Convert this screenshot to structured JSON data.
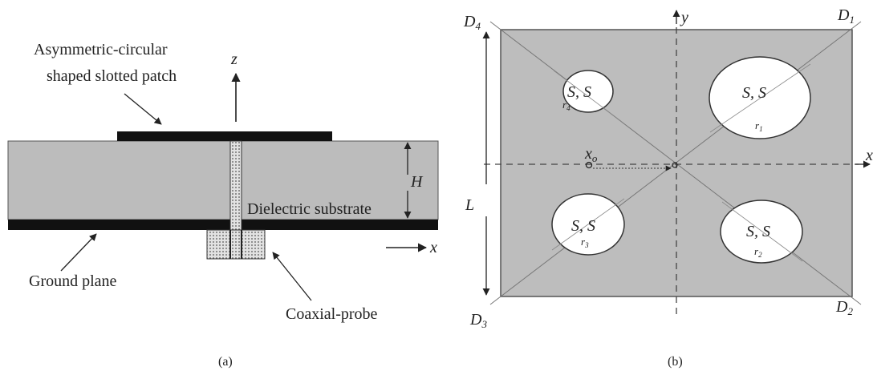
{
  "colors": {
    "substrate": "#bcbcbc",
    "patch": "#111111",
    "ground": "#111111",
    "plate": "#bdbdbd",
    "slot": "#ffffff",
    "line": "#444444",
    "probe_fill": "#d8d8d8"
  },
  "panel_a": {
    "patch_label_line1": "Asymmetric-circular",
    "patch_label_line2": "shaped slotted patch",
    "z_axis": "z",
    "x_axis": "x",
    "substrate_label": "Dielectric substrate",
    "height_label": "H",
    "ground_label": "Ground plane",
    "probe_label": "Coaxial-probe",
    "caption": "(a)"
  },
  "panel_b": {
    "y_axis": "y",
    "x_axis": "x",
    "d1": "D",
    "d1_sub": "1",
    "d2": "D",
    "d2_sub": "2",
    "d3": "D",
    "d3_sub": "3",
    "d4": "D",
    "d4_sub": "4",
    "length_label": "L",
    "x0": "x",
    "x0_sub": "o",
    "slot_label": "S, S",
    "r1": "r",
    "r1_sub": "1",
    "r2": "r",
    "r2_sub": "2",
    "r3": "r",
    "r3_sub": "3",
    "r4": "r",
    "r4_sub": "4",
    "caption": "(b)"
  }
}
